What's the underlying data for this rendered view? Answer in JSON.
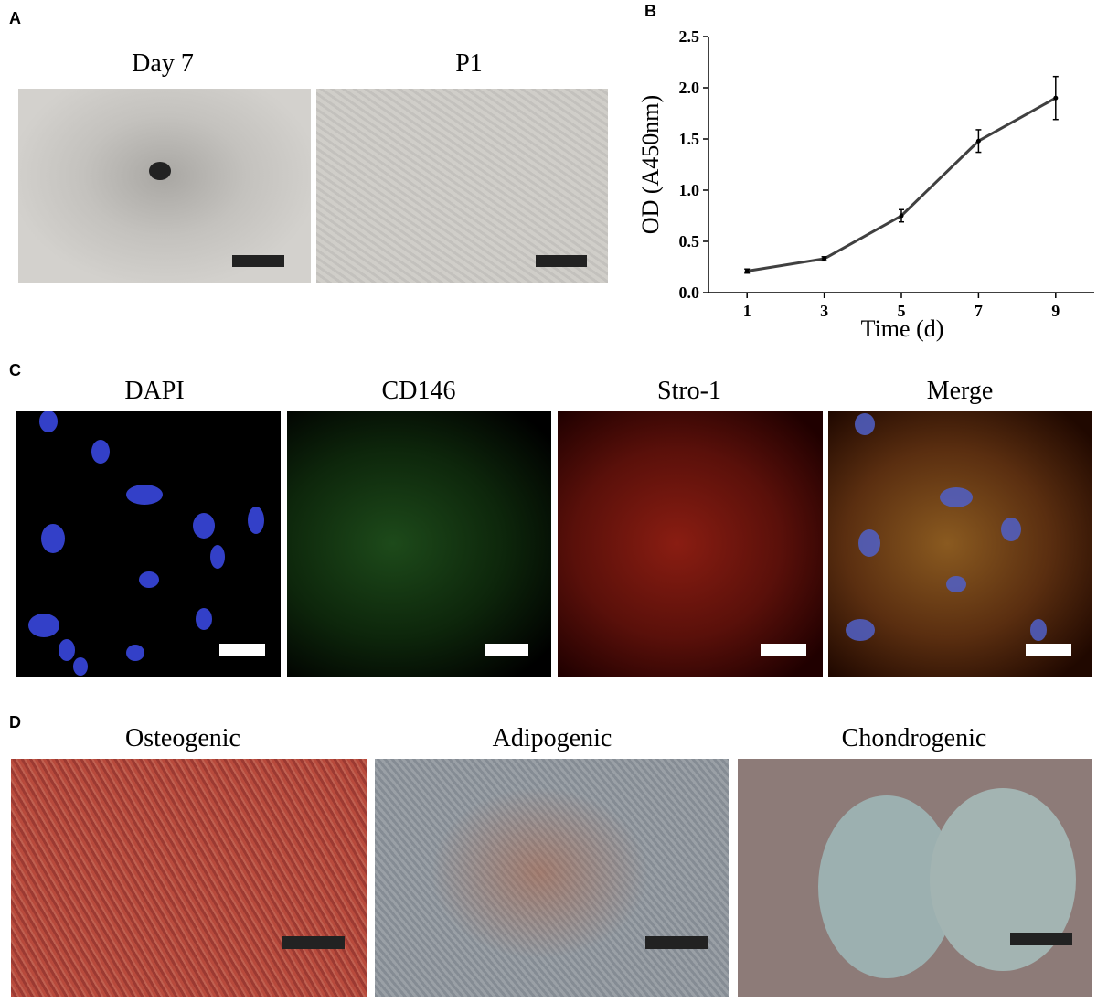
{
  "panels": {
    "A": {
      "label": "A",
      "images": [
        "Day 7",
        "P1"
      ]
    },
    "C": {
      "label": "C",
      "images": [
        "DAPI",
        "CD146",
        "Stro-1",
        "Merge"
      ]
    },
    "D": {
      "label": "D",
      "images": [
        "Osteogenic",
        "Adipogenic",
        "Chondrogenic"
      ]
    }
  },
  "chart_data": {
    "type": "line",
    "panel_label": "B",
    "x": [
      1,
      3,
      5,
      7,
      9
    ],
    "series": [
      {
        "color": "#404040",
        "values": [
          0.21,
          0.33,
          0.75,
          1.48,
          1.9
        ],
        "errors": [
          0.02,
          0.02,
          0.06,
          0.11,
          0.21
        ]
      }
    ],
    "xlabel": "Time (d)",
    "ylabel": "OD (A450nm)",
    "xlim": [
      0,
      10
    ],
    "ylim": [
      0,
      2.5
    ],
    "xticks": [
      1,
      3,
      5,
      7,
      9
    ],
    "yticks": [
      {
        "value": 0,
        "label": "0.0"
      },
      0.5,
      {
        "value": 1,
        "label": "1.0"
      },
      1.5,
      {
        "value": 2,
        "label": "2.0"
      },
      2.5
    ]
  }
}
